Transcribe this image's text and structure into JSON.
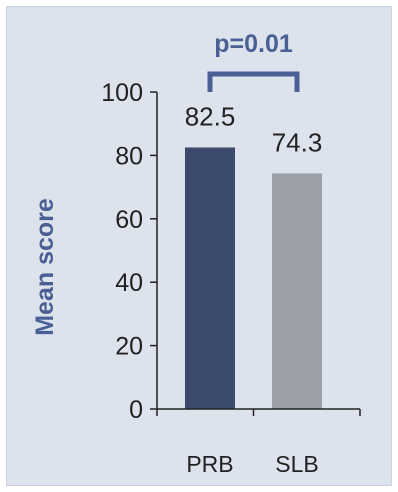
{
  "chart_data": {
    "type": "bar",
    "categories": [
      "PRB",
      "SLB"
    ],
    "values": [
      82.5,
      74.3
    ],
    "value_labels": [
      "82.5",
      "74.3"
    ],
    "xlabel": "",
    "ylabel": "Mean score",
    "ylim": [
      0,
      100
    ],
    "yticks": [
      0,
      20,
      40,
      60,
      80,
      100
    ],
    "ytick_labels": [
      "0",
      "20",
      "40",
      "60",
      "80",
      "100"
    ],
    "grid": false,
    "legend": "none",
    "annotation": "p=0.01",
    "colors": {
      "bars": [
        "#3c4a6b",
        "#9d9fa8"
      ],
      "ylabel": "#4a6095",
      "annotation_text": "#4a6095",
      "bracket": "#4a6095",
      "axis": "#222222",
      "background": "#dde3ed"
    }
  }
}
